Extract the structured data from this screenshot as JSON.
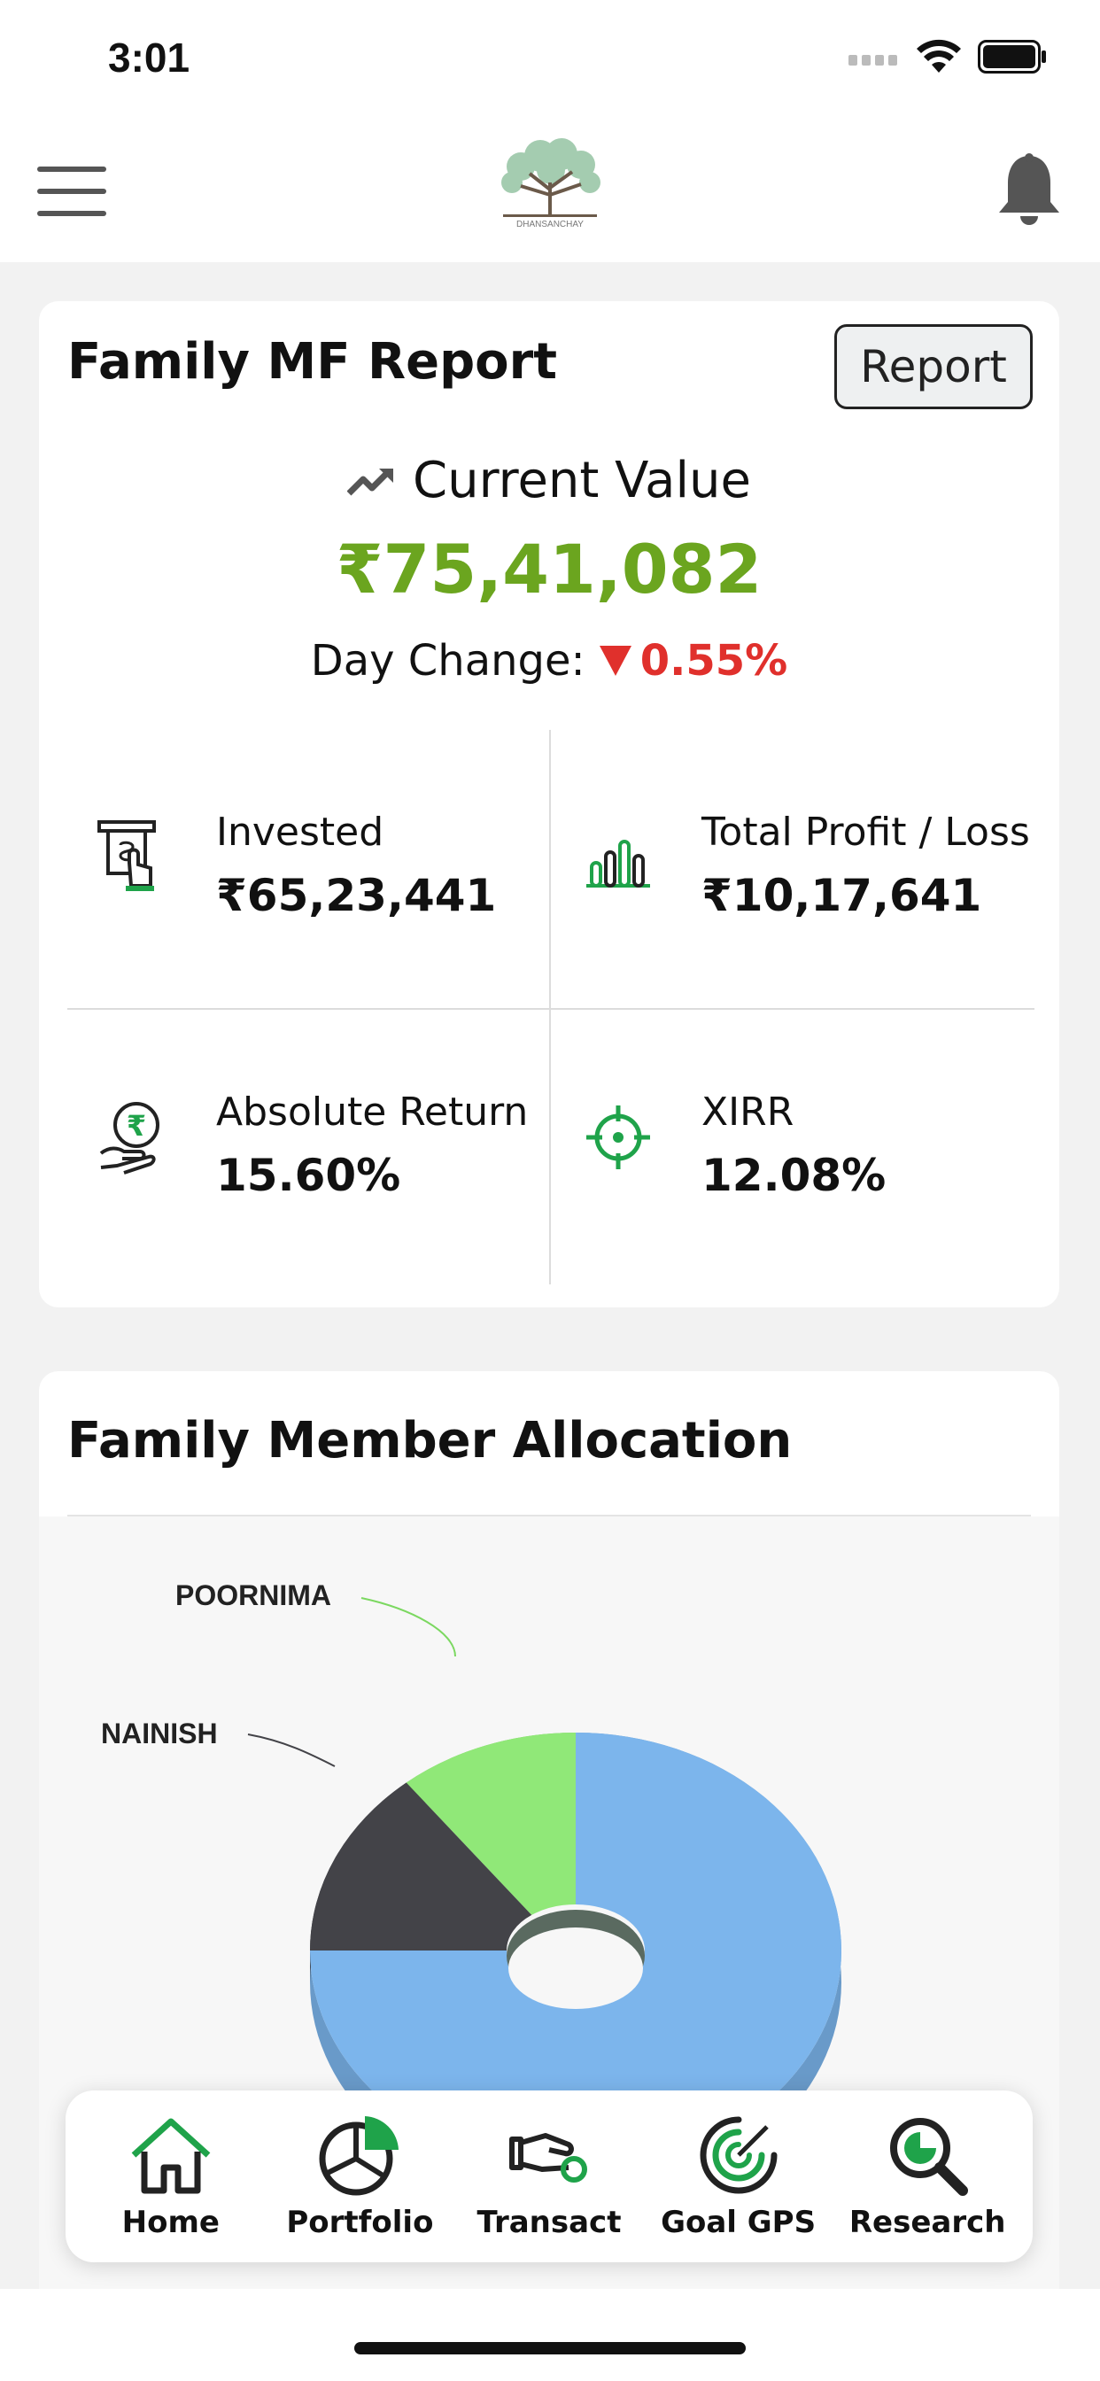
{
  "status_bar": {
    "time": "3:01"
  },
  "header": {
    "logo_text": "DHANSANCHAY"
  },
  "report_card": {
    "title": "Family MF Report",
    "report_button": "Report",
    "current_value_label": "Current Value",
    "current_value": "₹75,41,082",
    "day_change_label": "Day Change:",
    "day_change_value": "0.55%",
    "metrics": [
      {
        "label": "Invested",
        "value": "₹65,23,441",
        "icon": "atm-cash-icon"
      },
      {
        "label": "Total Profit / Loss",
        "value": "₹10,17,641",
        "icon": "bar-chart-icon"
      },
      {
        "label": "Absolute Return",
        "value": "15.60%",
        "icon": "rupee-hand-icon"
      },
      {
        "label": "XIRR",
        "value": "12.08%",
        "icon": "target-icon"
      }
    ]
  },
  "allocation_card": {
    "title": "Family Member Allocation",
    "chart_data": {
      "type": "pie",
      "style": "3d-donut",
      "slices": [
        {
          "name": "POORNIMA",
          "value": 11,
          "color": "#90e878"
        },
        {
          "name": "NAINISH",
          "value": 14,
          "color": "#434348"
        },
        {
          "name": "",
          "value": 75,
          "color": "#7cb5ec"
        }
      ]
    }
  },
  "bottom_nav": {
    "items": [
      {
        "label": "Home",
        "icon": "home-icon"
      },
      {
        "label": "Portfolio",
        "icon": "portfolio-pie-icon"
      },
      {
        "label": "Transact",
        "icon": "transact-hand-icon"
      },
      {
        "label": "Goal GPS",
        "icon": "goal-gps-icon"
      },
      {
        "label": "Research",
        "icon": "research-magnifier-icon"
      }
    ]
  },
  "colors": {
    "accent_green": "#6ba51f",
    "negative_red": "#e0302c",
    "icon_green": "#1fa34a"
  }
}
